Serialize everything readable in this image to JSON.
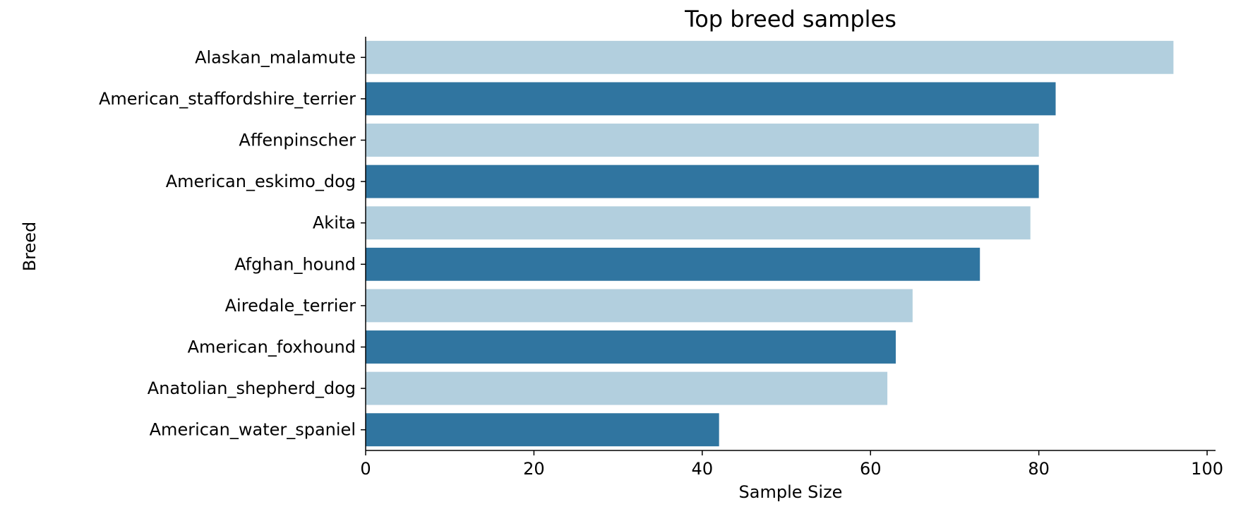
{
  "chart_data": {
    "type": "bar",
    "orientation": "horizontal",
    "title": "Top breed samples",
    "xlabel": "Sample Size",
    "ylabel": "Breed",
    "xlim": [
      0,
      101
    ],
    "xticks": [
      0,
      20,
      40,
      60,
      80,
      100
    ],
    "grid": false,
    "categories": [
      "Alaskan_malamute",
      "American_staffordshire_terrier",
      "Affenpinscher",
      "American_eskimo_dog",
      "Akita",
      "Afghan_hound",
      "Airedale_terrier",
      "American_foxhound",
      "Anatolian_shepherd_dog",
      "American_water_spaniel"
    ],
    "values": [
      96,
      82,
      80,
      80,
      79,
      73,
      65,
      63,
      62,
      42
    ],
    "colors": [
      "#b2cfde",
      "#3075a0"
    ]
  }
}
